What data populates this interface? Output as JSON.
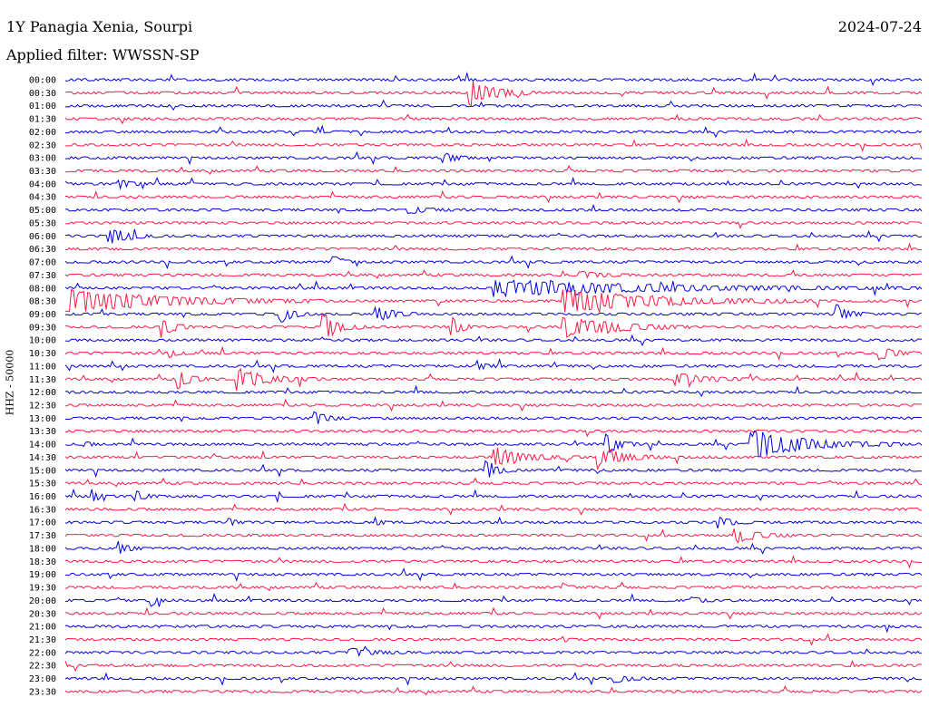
{
  "header": {
    "station": "1Y Panagia Xenia, Sourpi",
    "date": "2024-07-24",
    "filter_label": "Applied filter: WWSSN-SP"
  },
  "channel_label": "HHZ - 50000",
  "colors": {
    "trace_a": "#0000e0",
    "trace_b": "#ff1744",
    "background": "#ffffff",
    "text": "#000000"
  },
  "chart_data": {
    "type": "seismogram-helicorder",
    "row_labels": [
      "00:00",
      "00:30",
      "01:00",
      "01:30",
      "02:00",
      "02:30",
      "03:00",
      "03:30",
      "04:00",
      "04:30",
      "05:00",
      "05:30",
      "06:00",
      "06:30",
      "07:00",
      "07:30",
      "08:00",
      "08:30",
      "09:00",
      "09:30",
      "10:00",
      "10:30",
      "11:00",
      "11:30",
      "12:00",
      "12:30",
      "13:00",
      "13:30",
      "14:00",
      "14:30",
      "15:00",
      "15:30",
      "16:00",
      "16:30",
      "17:00",
      "17:30",
      "18:00",
      "18:30",
      "19:00",
      "19:30",
      "20:00",
      "20:30",
      "21:00",
      "21:30",
      "22:00",
      "22:30",
      "23:00",
      "23:30"
    ],
    "color_cycle": [
      "trace_a",
      "trace_b"
    ],
    "events": [
      {
        "row": 1,
        "at": 0.47,
        "amp": 1.4,
        "dur": 0.08
      },
      {
        "row": 6,
        "at": 0.44,
        "amp": 0.5,
        "dur": 0.04
      },
      {
        "row": 8,
        "at": 0.06,
        "amp": 0.5,
        "dur": 0.04
      },
      {
        "row": 10,
        "at": 0.4,
        "amp": 0.4,
        "dur": 0.05
      },
      {
        "row": 12,
        "at": 0.05,
        "amp": 0.9,
        "dur": 0.06
      },
      {
        "row": 14,
        "at": 0.31,
        "amp": 0.9,
        "dur": 0.03
      },
      {
        "row": 15,
        "at": 0.6,
        "amp": 0.4,
        "dur": 0.06
      },
      {
        "row": 16,
        "at": 0.5,
        "amp": 0.8,
        "dur": 0.5
      },
      {
        "row": 17,
        "at": 0.0,
        "amp": 1.2,
        "dur": 0.3
      },
      {
        "row": 17,
        "at": 0.58,
        "amp": 1.1,
        "dur": 0.3
      },
      {
        "row": 18,
        "at": 0.25,
        "amp": 0.9,
        "dur": 0.04
      },
      {
        "row": 18,
        "at": 0.36,
        "amp": 0.9,
        "dur": 0.05
      },
      {
        "row": 18,
        "at": 0.9,
        "amp": 1.0,
        "dur": 0.04
      },
      {
        "row": 19,
        "at": 0.11,
        "amp": 1.1,
        "dur": 0.04
      },
      {
        "row": 19,
        "at": 0.3,
        "amp": 1.4,
        "dur": 0.05
      },
      {
        "row": 19,
        "at": 0.45,
        "amp": 1.1,
        "dur": 0.03
      },
      {
        "row": 19,
        "at": 0.58,
        "amp": 1.3,
        "dur": 0.15
      },
      {
        "row": 21,
        "at": 0.12,
        "amp": 0.5,
        "dur": 0.03
      },
      {
        "row": 21,
        "at": 0.95,
        "amp": 0.6,
        "dur": 0.05
      },
      {
        "row": 22,
        "at": 0.48,
        "amp": 0.5,
        "dur": 0.03
      },
      {
        "row": 23,
        "at": 0.13,
        "amp": 1.0,
        "dur": 0.04
      },
      {
        "row": 23,
        "at": 0.2,
        "amp": 1.0,
        "dur": 0.1
      },
      {
        "row": 23,
        "at": 0.71,
        "amp": 0.6,
        "dur": 0.1
      },
      {
        "row": 26,
        "at": 0.29,
        "amp": 0.7,
        "dur": 0.04
      },
      {
        "row": 28,
        "at": 0.02,
        "amp": 0.4,
        "dur": 0.02
      },
      {
        "row": 28,
        "at": 0.63,
        "amp": 1.1,
        "dur": 0.04
      },
      {
        "row": 28,
        "at": 0.8,
        "amp": 1.3,
        "dur": 0.18
      },
      {
        "row": 29,
        "at": 0.5,
        "amp": 1.0,
        "dur": 0.1
      },
      {
        "row": 29,
        "at": 0.62,
        "amp": 1.1,
        "dur": 0.08
      },
      {
        "row": 30,
        "at": 0.49,
        "amp": 1.0,
        "dur": 0.04
      },
      {
        "row": 32,
        "at": 0.03,
        "amp": 0.8,
        "dur": 0.02
      },
      {
        "row": 32,
        "at": 0.08,
        "amp": 0.6,
        "dur": 0.03
      },
      {
        "row": 34,
        "at": 0.19,
        "amp": 0.5,
        "dur": 0.02
      },
      {
        "row": 34,
        "at": 0.36,
        "amp": 0.5,
        "dur": 0.02
      },
      {
        "row": 34,
        "at": 0.76,
        "amp": 0.6,
        "dur": 0.04
      },
      {
        "row": 35,
        "at": 0.78,
        "amp": 0.8,
        "dur": 0.07
      },
      {
        "row": 36,
        "at": 0.06,
        "amp": 0.7,
        "dur": 0.03
      },
      {
        "row": 39,
        "at": 0.58,
        "amp": 0.5,
        "dur": 0.02
      },
      {
        "row": 40,
        "at": 0.1,
        "amp": 0.5,
        "dur": 0.02
      },
      {
        "row": 40,
        "at": 0.73,
        "amp": 0.4,
        "dur": 0.03
      },
      {
        "row": 43,
        "at": 0.58,
        "amp": 0.3,
        "dur": 0.02
      },
      {
        "row": 44,
        "at": 0.33,
        "amp": 0.4,
        "dur": 0.08
      },
      {
        "row": 46,
        "at": 0.64,
        "amp": 0.4,
        "dur": 0.05
      }
    ]
  }
}
